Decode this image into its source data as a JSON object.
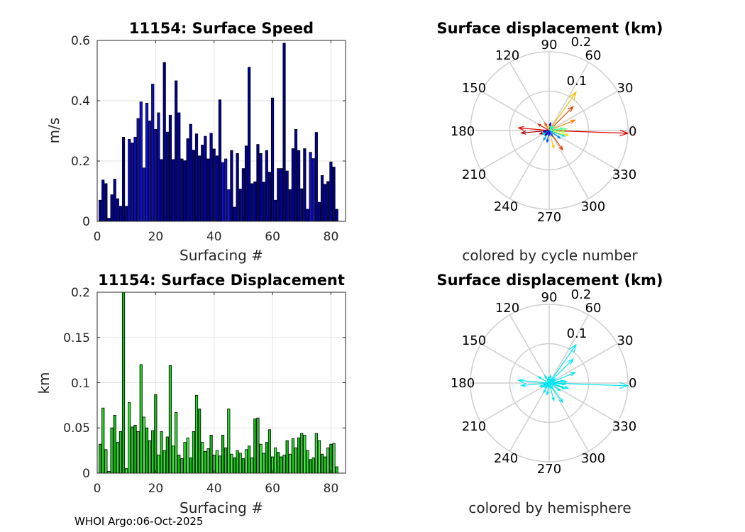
{
  "chart_data": [
    {
      "id": "speed",
      "type": "bar",
      "title": "11154: Surface Speed",
      "xlabel": "Surfacing #",
      "ylabel": "m/s",
      "xlim": [
        0,
        85
      ],
      "ylim": [
        0,
        0.6
      ],
      "xticks": [
        "0",
        "20",
        "40",
        "60",
        "80"
      ],
      "yticks": [
        "0",
        "0.2",
        "0.4",
        "0.6"
      ],
      "grid": true,
      "x": [
        1,
        2,
        3,
        4,
        5,
        6,
        7,
        8,
        9,
        10,
        11,
        12,
        13,
        14,
        15,
        16,
        17,
        18,
        19,
        20,
        21,
        22,
        23,
        24,
        25,
        26,
        27,
        28,
        29,
        30,
        31,
        32,
        33,
        34,
        35,
        36,
        37,
        38,
        39,
        40,
        41,
        42,
        43,
        44,
        45,
        46,
        47,
        48,
        49,
        50,
        51,
        52,
        53,
        54,
        55,
        56,
        57,
        58,
        59,
        60,
        61,
        62,
        63,
        64,
        65,
        66,
        67,
        68,
        69,
        70,
        71,
        72,
        73,
        74,
        75,
        76,
        77,
        78,
        79,
        80,
        81,
        82
      ],
      "values": [
        0.07,
        0.137,
        0.125,
        0.01,
        0.088,
        0.14,
        0.075,
        0.05,
        0.279,
        0.05,
        0.272,
        0.26,
        0.279,
        0.341,
        0.396,
        0.177,
        0.392,
        0.333,
        0.455,
        0.305,
        0.36,
        0.205,
        0.527,
        0.296,
        0.352,
        0.205,
        0.466,
        0.36,
        0.207,
        0.201,
        0.274,
        0.322,
        0.236,
        0.29,
        0.217,
        0.253,
        0.282,
        0.207,
        0.292,
        0.24,
        0.217,
        0.403,
        0.195,
        0.207,
        0.105,
        0.235,
        0.047,
        0.225,
        0.107,
        0.175,
        0.25,
        0.511,
        0.125,
        0.131,
        0.255,
        0.225,
        0.13,
        0.235,
        0.163,
        0.409,
        0.07,
        0.175,
        0.175,
        0.591,
        0.167,
        0.105,
        0.241,
        0.305,
        0.235,
        0.108,
        0.241,
        0.04,
        0.229,
        0.208,
        0.295,
        0.063,
        0.152,
        0.123,
        0.132,
        0.197,
        0.18,
        0.04
      ],
      "colors": [
        "#0000A0",
        "#000098",
        "#000090",
        "#0000B0",
        "#0000A8",
        "#000098",
        "#0000A8",
        "#0000B0",
        "#000090",
        "#0000B0",
        "#0808B8",
        "#0A0AC0",
        "#0C0CC8",
        "#0E0ED0",
        "#1010D8",
        "#1010DE",
        "#1010D8",
        "#0E0ED0",
        "#0C0CC8",
        "#0A0AC0",
        "#0808B8",
        "#0000A8",
        "#000098",
        "#0000A0",
        "#000098",
        "#0000A8",
        "#000098",
        "#0000A0",
        "#0000A8",
        "#000098",
        "#0000A8",
        "#0000A0",
        "#000098",
        "#0000A8",
        "#0000A0",
        "#000098",
        "#0000A8",
        "#0000A0",
        "#0000A8",
        "#0000A8",
        "#0000A0",
        "#000098",
        "#1010D8",
        "#1212E0",
        "#1414E8",
        "#000098",
        "#0000A8",
        "#000098",
        "#0000A0",
        "#000098",
        "#0000A0",
        "#000098",
        "#0000A8",
        "#0000A0",
        "#000098",
        "#0000A8",
        "#000098",
        "#0000A0",
        "#000098",
        "#0000A8",
        "#0000A0",
        "#000098",
        "#0000A8",
        "#000098",
        "#0000A0",
        "#0000A8",
        "#000098",
        "#0000A0",
        "#000098",
        "#0000A8",
        "#000098",
        "#0000A0",
        "#1010D8",
        "#1010D8",
        "#0000A8",
        "#0000A0",
        "#000098",
        "#000098",
        "#000098",
        "#0000A0",
        "#000098",
        "#000098"
      ]
    },
    {
      "id": "disp",
      "type": "bar",
      "title": "11154: Surface Displacement",
      "xlabel": "Surfacing #",
      "ylabel": "km",
      "xlim": [
        0,
        85
      ],
      "ylim": [
        0,
        0.2
      ],
      "xticks": [
        "0",
        "20",
        "40",
        "60",
        "80"
      ],
      "yticks": [
        "0",
        "0.05",
        "0.1",
        "0.15",
        "0.2"
      ],
      "grid": true,
      "x": [
        1,
        2,
        3,
        4,
        5,
        6,
        7,
        8,
        9,
        10,
        11,
        12,
        13,
        14,
        15,
        16,
        17,
        18,
        19,
        20,
        21,
        22,
        23,
        24,
        25,
        26,
        27,
        28,
        29,
        30,
        31,
        32,
        33,
        34,
        35,
        36,
        37,
        38,
        39,
        40,
        41,
        42,
        43,
        44,
        45,
        46,
        47,
        48,
        49,
        50,
        51,
        52,
        53,
        54,
        55,
        56,
        57,
        58,
        59,
        60,
        61,
        62,
        63,
        64,
        65,
        66,
        67,
        68,
        69,
        70,
        71,
        72,
        73,
        74,
        75,
        76,
        77,
        78,
        79,
        80,
        81,
        82
      ],
      "values": [
        0.032,
        0.072,
        0.026,
        0.002,
        0.05,
        0.064,
        0.034,
        0.046,
        0.2,
        0.005,
        0.078,
        0.051,
        0.053,
        0.046,
        0.12,
        0.062,
        0.05,
        0.036,
        0.047,
        0.087,
        0.02,
        0.046,
        0.025,
        0.04,
        0.119,
        0.03,
        0.067,
        0.02,
        0.016,
        0.034,
        0.039,
        0.017,
        0.046,
        0.086,
        0.071,
        0.034,
        0.024,
        0.027,
        0.042,
        0.02,
        0.025,
        0.019,
        0.042,
        0.028,
        0.071,
        0.021,
        0.017,
        0.025,
        0.022,
        0.016,
        0.026,
        0.03,
        0.017,
        0.06,
        0.061,
        0.032,
        0.022,
        0.034,
        0.048,
        0.018,
        0.028,
        0.023,
        0.018,
        0.02,
        0.036,
        0.021,
        0.038,
        0.028,
        0.039,
        0.044,
        0.042,
        0.025,
        0.015,
        0.017,
        0.044,
        0.036,
        0.021,
        0.018,
        0.028,
        0.032,
        0.033,
        0.007
      ],
      "colors": [
        "#10C010",
        "#20D020",
        "#30E030",
        "#40F040",
        "#20D020",
        "#10C010",
        "#30E030",
        "#20D020",
        "#10C010",
        "#40F040",
        "#30E030",
        "#20D020",
        "#10C010",
        "#30E030",
        "#20D020",
        "#40F040",
        "#10C010",
        "#30E030",
        "#20D020",
        "#10C010",
        "#40F040",
        "#20D020",
        "#30E030",
        "#10C010",
        "#20D020",
        "#40F040",
        "#30E030",
        "#10C010",
        "#20D020",
        "#30E030",
        "#40F040",
        "#10C010",
        "#20D020",
        "#30E030",
        "#10C010",
        "#40F040",
        "#20D020",
        "#30E030",
        "#10C010",
        "#20D020",
        "#40F040",
        "#30E030",
        "#10C010",
        "#20D020",
        "#30E030",
        "#40F040",
        "#10C010",
        "#20D020",
        "#30E030",
        "#10C010",
        "#40F040",
        "#20D020",
        "#30E030",
        "#10C010",
        "#20D020",
        "#40F040",
        "#30E030",
        "#10C010",
        "#20D020",
        "#30E030",
        "#40F040",
        "#10C010",
        "#20D020",
        "#30E030",
        "#10C010",
        "#40F040",
        "#20D020",
        "#30E030",
        "#10C010",
        "#20D020",
        "#40F040",
        "#30E030",
        "#10C010",
        "#20D020",
        "#30E030",
        "#40F040",
        "#10C010",
        "#20D020",
        "#30E030",
        "#10C010",
        "#40F040",
        "#20D020"
      ]
    },
    {
      "id": "compass1",
      "type": "compass",
      "title": "Surface displacement (km)",
      "subtitle": "colored by cycle number",
      "rmax": 0.2,
      "rticks": [
        "0.1",
        "0.2"
      ],
      "angle_labels": [
        "0",
        "30",
        "60",
        "90",
        "120",
        "150",
        "180",
        "210",
        "240",
        "270",
        "300",
        "330"
      ],
      "vectors": [
        {
          "r": 0.2,
          "deg": -2,
          "color": "#E00000"
        },
        {
          "r": 0.119,
          "deg": 55,
          "color": "#F0C000"
        },
        {
          "r": 0.086,
          "deg": 45,
          "color": "#E04000"
        },
        {
          "r": 0.071,
          "deg": 22,
          "color": "#FF8000"
        },
        {
          "r": 0.078,
          "deg": 175,
          "color": "#E00000"
        },
        {
          "r": 0.071,
          "deg": 185,
          "color": "#B00000"
        },
        {
          "r": 0.06,
          "deg": -55,
          "color": "#E04000"
        },
        {
          "r": 0.05,
          "deg": -15,
          "color": "#FFE000"
        },
        {
          "r": 0.046,
          "deg": -75,
          "color": "#FFC000"
        },
        {
          "r": 0.045,
          "deg": 5,
          "color": "#80FF80"
        },
        {
          "r": 0.04,
          "deg": -5,
          "color": "#A0FF40"
        },
        {
          "r": 0.042,
          "deg": -20,
          "color": "#00E0E0"
        },
        {
          "r": 0.036,
          "deg": 10,
          "color": "#40FFB0"
        },
        {
          "r": 0.034,
          "deg": -35,
          "color": "#0080FF"
        },
        {
          "r": 0.03,
          "deg": -100,
          "color": "#0040FF"
        },
        {
          "r": 0.032,
          "deg": 150,
          "color": "#E02000"
        },
        {
          "r": 0.028,
          "deg": -120,
          "color": "#00A0FF"
        },
        {
          "r": 0.025,
          "deg": 200,
          "color": "#C00000"
        },
        {
          "r": 0.022,
          "deg": 120,
          "color": "#FF4000"
        },
        {
          "r": 0.02,
          "deg": 80,
          "color": "#0000FF"
        },
        {
          "r": 0.02,
          "deg": -150,
          "color": "#00C0FF"
        },
        {
          "r": 0.018,
          "deg": 35,
          "color": "#60FF90"
        },
        {
          "r": 0.017,
          "deg": -60,
          "color": "#0060FF"
        },
        {
          "r": 0.016,
          "deg": 230,
          "color": "#000090"
        },
        {
          "r": 0.015,
          "deg": 100,
          "color": "#FFE000"
        },
        {
          "r": 0.014,
          "deg": -170,
          "color": "#0000C0"
        },
        {
          "r": 0.013,
          "deg": 60,
          "color": "#00FFFF"
        },
        {
          "r": 0.012,
          "deg": -90,
          "color": "#0000E0"
        }
      ]
    },
    {
      "id": "compass2",
      "type": "compass",
      "title": "Surface displacement (km)",
      "subtitle": "colored by hemisphere",
      "rmax": 0.2,
      "rticks": [
        "0.1",
        "0.2"
      ],
      "angle_labels": [
        "0",
        "30",
        "60",
        "90",
        "120",
        "150",
        "180",
        "210",
        "240",
        "270",
        "300",
        "330"
      ],
      "vectors": [
        {
          "r": 0.2,
          "deg": -2,
          "color": "#00E5F0"
        },
        {
          "r": 0.119,
          "deg": 55,
          "color": "#00E5F0"
        },
        {
          "r": 0.086,
          "deg": 45,
          "color": "#00E5F0"
        },
        {
          "r": 0.071,
          "deg": 22,
          "color": "#00E5F0"
        },
        {
          "r": 0.078,
          "deg": 175,
          "color": "#00E5F0"
        },
        {
          "r": 0.071,
          "deg": 185,
          "color": "#00E5F0"
        },
        {
          "r": 0.06,
          "deg": -55,
          "color": "#00E5F0"
        },
        {
          "r": 0.05,
          "deg": -15,
          "color": "#00E5F0"
        },
        {
          "r": 0.046,
          "deg": -75,
          "color": "#00E5F0"
        },
        {
          "r": 0.045,
          "deg": 5,
          "color": "#00E5F0"
        },
        {
          "r": 0.04,
          "deg": -5,
          "color": "#00E5F0"
        },
        {
          "r": 0.042,
          "deg": -20,
          "color": "#00E5F0"
        },
        {
          "r": 0.036,
          "deg": 10,
          "color": "#00E5F0"
        },
        {
          "r": 0.034,
          "deg": -35,
          "color": "#00E5F0"
        },
        {
          "r": 0.03,
          "deg": -100,
          "color": "#00E5F0"
        },
        {
          "r": 0.032,
          "deg": 150,
          "color": "#00E5F0"
        },
        {
          "r": 0.028,
          "deg": -120,
          "color": "#00E5F0"
        },
        {
          "r": 0.025,
          "deg": 200,
          "color": "#00E5F0"
        },
        {
          "r": 0.022,
          "deg": 120,
          "color": "#00E5F0"
        },
        {
          "r": 0.02,
          "deg": 80,
          "color": "#00E5F0"
        },
        {
          "r": 0.02,
          "deg": -150,
          "color": "#00E5F0"
        },
        {
          "r": 0.018,
          "deg": 35,
          "color": "#00E5F0"
        },
        {
          "r": 0.017,
          "deg": -60,
          "color": "#00E5F0"
        },
        {
          "r": 0.016,
          "deg": 230,
          "color": "#00E5F0"
        },
        {
          "r": 0.015,
          "deg": 100,
          "color": "#00E5F0"
        },
        {
          "r": 0.014,
          "deg": -170,
          "color": "#00E5F0"
        },
        {
          "r": 0.013,
          "deg": 60,
          "color": "#00E5F0"
        },
        {
          "r": 0.012,
          "deg": -90,
          "color": "#00E5F0"
        }
      ]
    }
  ],
  "footer": "WHOI Argo:06-Oct-2025"
}
